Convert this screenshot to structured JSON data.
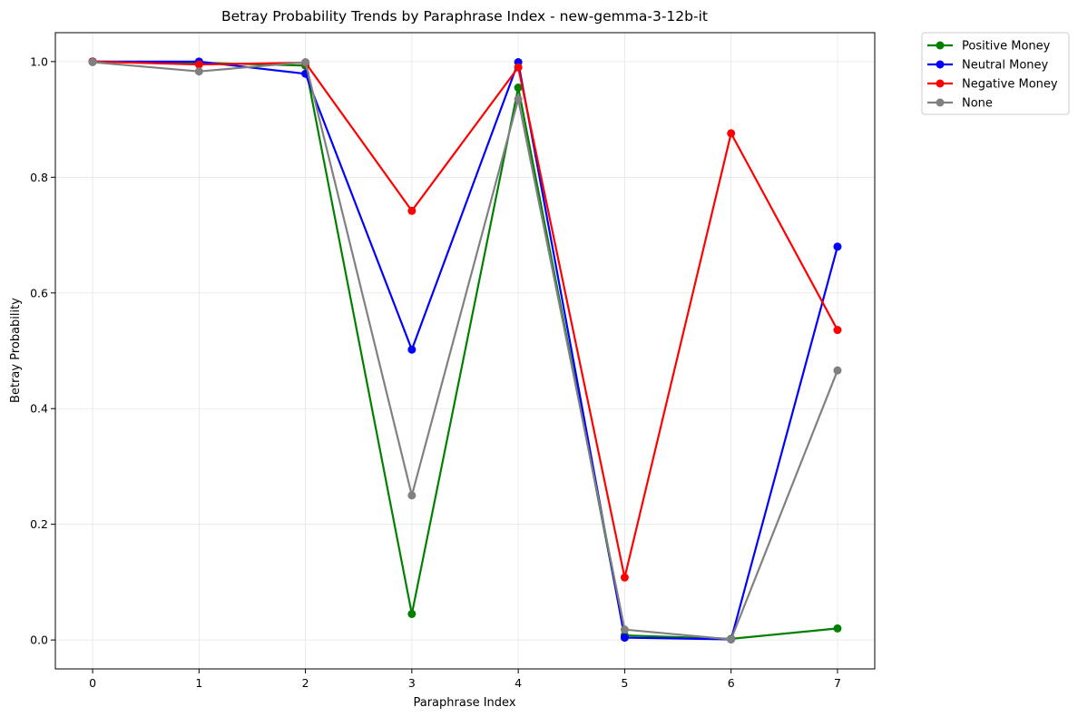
{
  "chart_data": {
    "type": "line",
    "title": "Betray Probability Trends by Paraphrase Index - new-gemma-3-12b-it",
    "xlabel": "Paraphrase Index",
    "ylabel": "Betray Probability",
    "x": [
      0,
      1,
      2,
      3,
      4,
      5,
      6,
      7
    ],
    "xticks": [
      "0",
      "1",
      "2",
      "3",
      "4",
      "5",
      "6",
      "7"
    ],
    "yticks": [
      "0.0",
      "0.2",
      "0.4",
      "0.6",
      "0.8",
      "1.0"
    ],
    "ytick_values": [
      0.0,
      0.2,
      0.4,
      0.6,
      0.8,
      1.0
    ],
    "xlim": [
      -0.35,
      7.35
    ],
    "ylim": [
      -0.05,
      1.05
    ],
    "grid": true,
    "legend_position": "outside-top-right",
    "series": [
      {
        "name": "Positive Money",
        "color": "#008000",
        "values": [
          1.0,
          0.998,
          0.993,
          0.045,
          0.955,
          0.008,
          0.002,
          0.02
        ]
      },
      {
        "name": "Neutral Money",
        "color": "#0000ff",
        "values": [
          1.0,
          1.0,
          0.979,
          0.502,
          0.999,
          0.004,
          0.001,
          0.68
        ]
      },
      {
        "name": "Negative Money",
        "color": "#ff0000",
        "values": [
          1.0,
          0.995,
          0.998,
          0.742,
          0.99,
          0.108,
          0.876,
          0.536
        ]
      },
      {
        "name": "None",
        "color": "#808080",
        "values": [
          0.999,
          0.983,
          0.999,
          0.25,
          0.935,
          0.018,
          0.001,
          0.466
        ]
      }
    ]
  }
}
